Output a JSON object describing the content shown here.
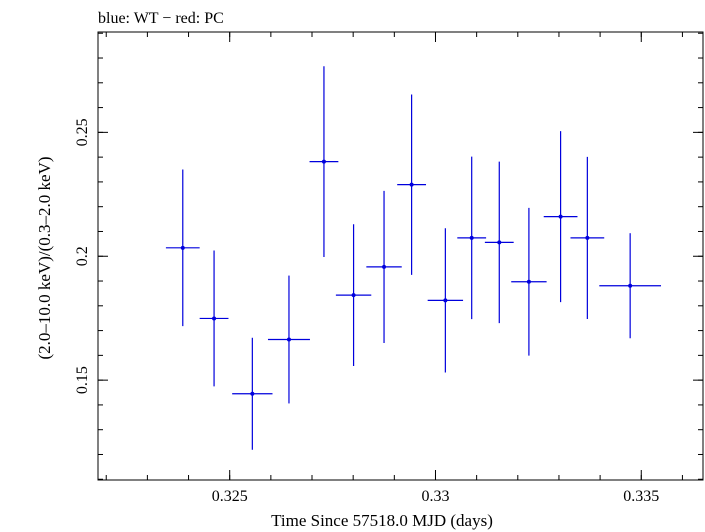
{
  "chart_data": {
    "type": "scatter",
    "title": "blue: WT − red: PC",
    "xlabel": "Time Since 57518.0 MJD (days)",
    "ylabel": "(2.0–10.0 keV)/(0.3–2.0 keV)",
    "xlim": [
      0.3218,
      0.3365
    ],
    "ylim": [
      0.1097,
      0.2905
    ],
    "x_ticks": [
      {
        "value": 0.325,
        "label": "0.325"
      },
      {
        "value": 0.33,
        "label": "0.33"
      },
      {
        "value": 0.335,
        "label": "0.335"
      }
    ],
    "y_ticks": [
      {
        "value": 0.15,
        "label": "0.15"
      },
      {
        "value": 0.2,
        "label": "0.2"
      },
      {
        "value": 0.25,
        "label": "0.25"
      }
    ],
    "x_minor_step": 0.001,
    "y_minor_step": 0.01,
    "grid": false,
    "series": [
      {
        "color": "#0000dd",
        "points": [
          {
            "x": 0.32386,
            "xerr": 0.00041,
            "y": 0.2034,
            "yerr": [
              0.0316,
              0.0316
            ]
          },
          {
            "x": 0.32462,
            "xerr": 0.00035,
            "y": 0.1749,
            "yerr": [
              0.0274,
              0.0274
            ]
          },
          {
            "x": 0.32555,
            "xerr": 0.00049,
            "y": 0.1445,
            "yerr": [
              0.0226,
              0.0226
            ]
          },
          {
            "x": 0.32644,
            "xerr": 0.00051,
            "y": 0.1664,
            "yerr": [
              0.0258,
              0.0258
            ]
          },
          {
            "x": 0.32729,
            "xerr": 0.00035,
            "y": 0.2382,
            "yerr": [
              0.0385,
              0.0385
            ]
          },
          {
            "x": 0.32801,
            "xerr": 0.00043,
            "y": 0.1843,
            "yerr": [
              0.0286,
              0.0286
            ]
          },
          {
            "x": 0.32875,
            "xerr": 0.00043,
            "y": 0.1957,
            "yerr": [
              0.0307,
              0.0307
            ]
          },
          {
            "x": 0.32942,
            "xerr": 0.00035,
            "y": 0.2289,
            "yerr": [
              0.0364,
              0.0364
            ]
          },
          {
            "x": 0.33024,
            "xerr": 0.00043,
            "y": 0.1822,
            "yerr": [
              0.0291,
              0.0291
            ]
          },
          {
            "x": 0.33088,
            "xerr": 0.00035,
            "y": 0.2074,
            "yerr": [
              0.0328,
              0.0328
            ]
          },
          {
            "x": 0.33155,
            "xerr": 0.00035,
            "y": 0.2056,
            "yerr": [
              0.0326,
              0.0326
            ]
          },
          {
            "x": 0.33227,
            "xerr": 0.00043,
            "y": 0.1897,
            "yerr": [
              0.0298,
              0.0298
            ]
          },
          {
            "x": 0.33304,
            "xerr": 0.00041,
            "y": 0.216,
            "yerr": [
              0.0345,
              0.0345
            ]
          },
          {
            "x": 0.33369,
            "xerr": 0.00041,
            "y": 0.2074,
            "yerr": [
              0.0327,
              0.0327
            ]
          },
          {
            "x": 0.33473,
            "xerr": 0.00075,
            "y": 0.1881,
            "yerr": [
              0.0212,
              0.0212
            ]
          }
        ]
      }
    ]
  }
}
